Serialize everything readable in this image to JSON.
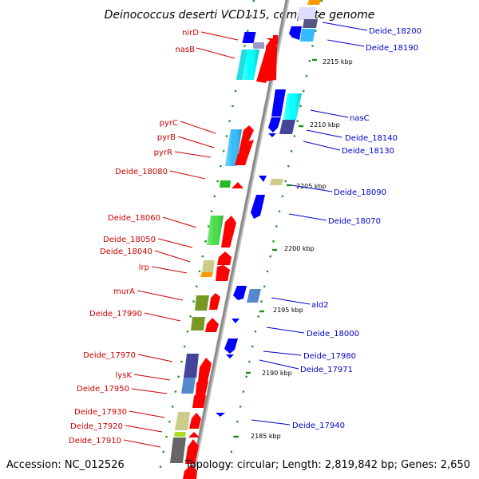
{
  "title": "Deinococcus deserti VCD115, complete genome",
  "footer": {
    "accession": "Accession: NC_012526",
    "topology": "Topology: circular; Length: 2,819,842 bp; Genes: 2,650"
  },
  "colors": {
    "left_label": "#cc0000",
    "right_label": "#0000cc",
    "forward_gene": "#ff0000",
    "reverse_gene": "#0000ff",
    "backbone": "#999999",
    "tick_dot": "#1a8c1a"
  },
  "ticks": [
    "2215 kbp",
    "2210 kbp",
    "2205 kbp",
    "2200 kbp",
    "2195 kbp",
    "2190 kbp",
    "2185 kbp"
  ],
  "left_labels": [
    "nirD",
    "nasB",
    "pyrC",
    "pyrB",
    "pyrR",
    "Deide_18080",
    "Deide_18060",
    "Deide_18050",
    "Deide_18040",
    "lrp",
    "murA",
    "Deide_17990",
    "Deide_17970",
    "lysK",
    "Deide_17950",
    "Deide_17930",
    "Deide_17920",
    "Deide_17910"
  ],
  "right_labels": [
    "Deide_18200",
    "Deide_18190",
    "nasC",
    "Deide_18140",
    "Deide_18130",
    "Deide_18090",
    "Deide_18070",
    "ald2",
    "Deide_18000",
    "Deide_17980",
    "Deide_17971",
    "Deide_17940"
  ]
}
